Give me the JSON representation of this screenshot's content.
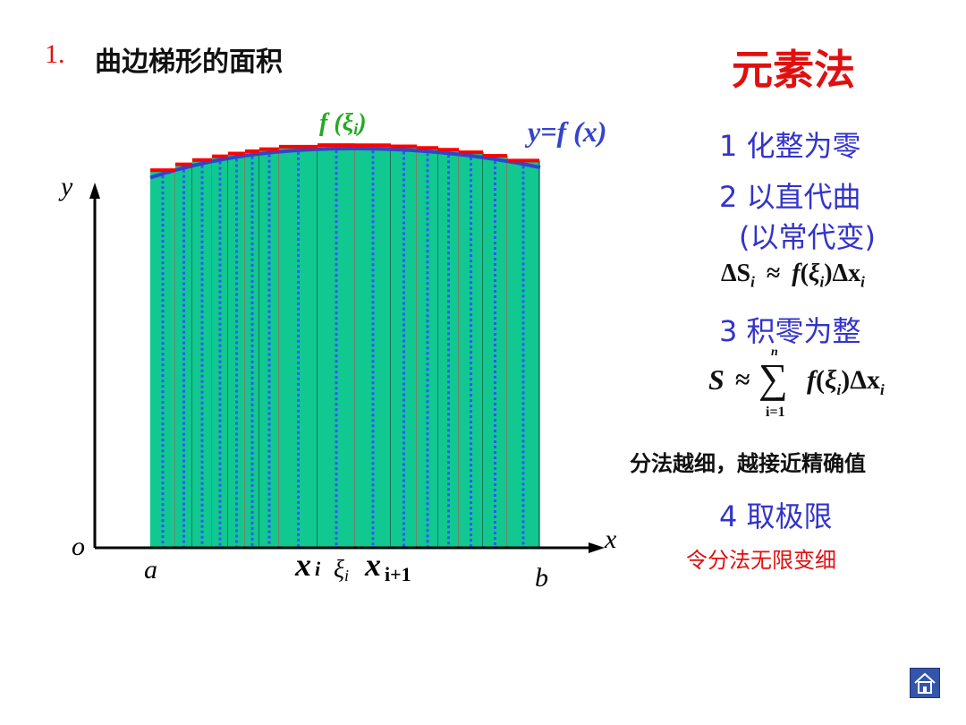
{
  "title": {
    "number": "1.",
    "text": "曲边梯形的面积"
  },
  "method": "元素法",
  "steps": [
    {
      "label": "1 化整为零"
    },
    {
      "label": "2 以直代曲",
      "sub": "(以常代变)"
    },
    {
      "label": "3 积零为整"
    },
    {
      "label": "4 取极限"
    }
  ],
  "formula1": {
    "lhs": "ΔS",
    "lhs_sub": "i",
    "approx": "≈",
    "f": "f",
    "xi": "ξ",
    "xi_sub": "i",
    "dx": "Δx",
    "dx_sub": "i"
  },
  "formula2": {
    "lhs": "S",
    "approx": "≈",
    "sum": "∑",
    "sum_top": "n",
    "sum_bottom": "i=1",
    "f": "f",
    "xi": "ξ",
    "xi_sub": "i",
    "dx": "Δx",
    "dx_sub": "i"
  },
  "note_finer": "分法越细，越接近精确值",
  "note_limit": "令分法无限变细",
  "graph": {
    "y_label": "y",
    "x_label": "x",
    "origin_label": "o",
    "a_label": "a",
    "b_label": "b",
    "xi_label": "x",
    "xi_label_sub": "i",
    "ksi_label": "ξ",
    "ksi_label_sub": "i",
    "xi1_label": "x",
    "xi1_label_sub": "i+1",
    "f_ksi_label": "f (ξ",
    "f_ksi_sub": "i",
    "f_ksi_close": ")",
    "curve_label": "y=f (x)",
    "colors": {
      "fill": "#10c890",
      "curve": "#3344cc",
      "tops": "#ff0000",
      "dotted": "#3355ff",
      "axis": "#000000"
    }
  },
  "nav": {
    "home_icon": "home-icon"
  }
}
